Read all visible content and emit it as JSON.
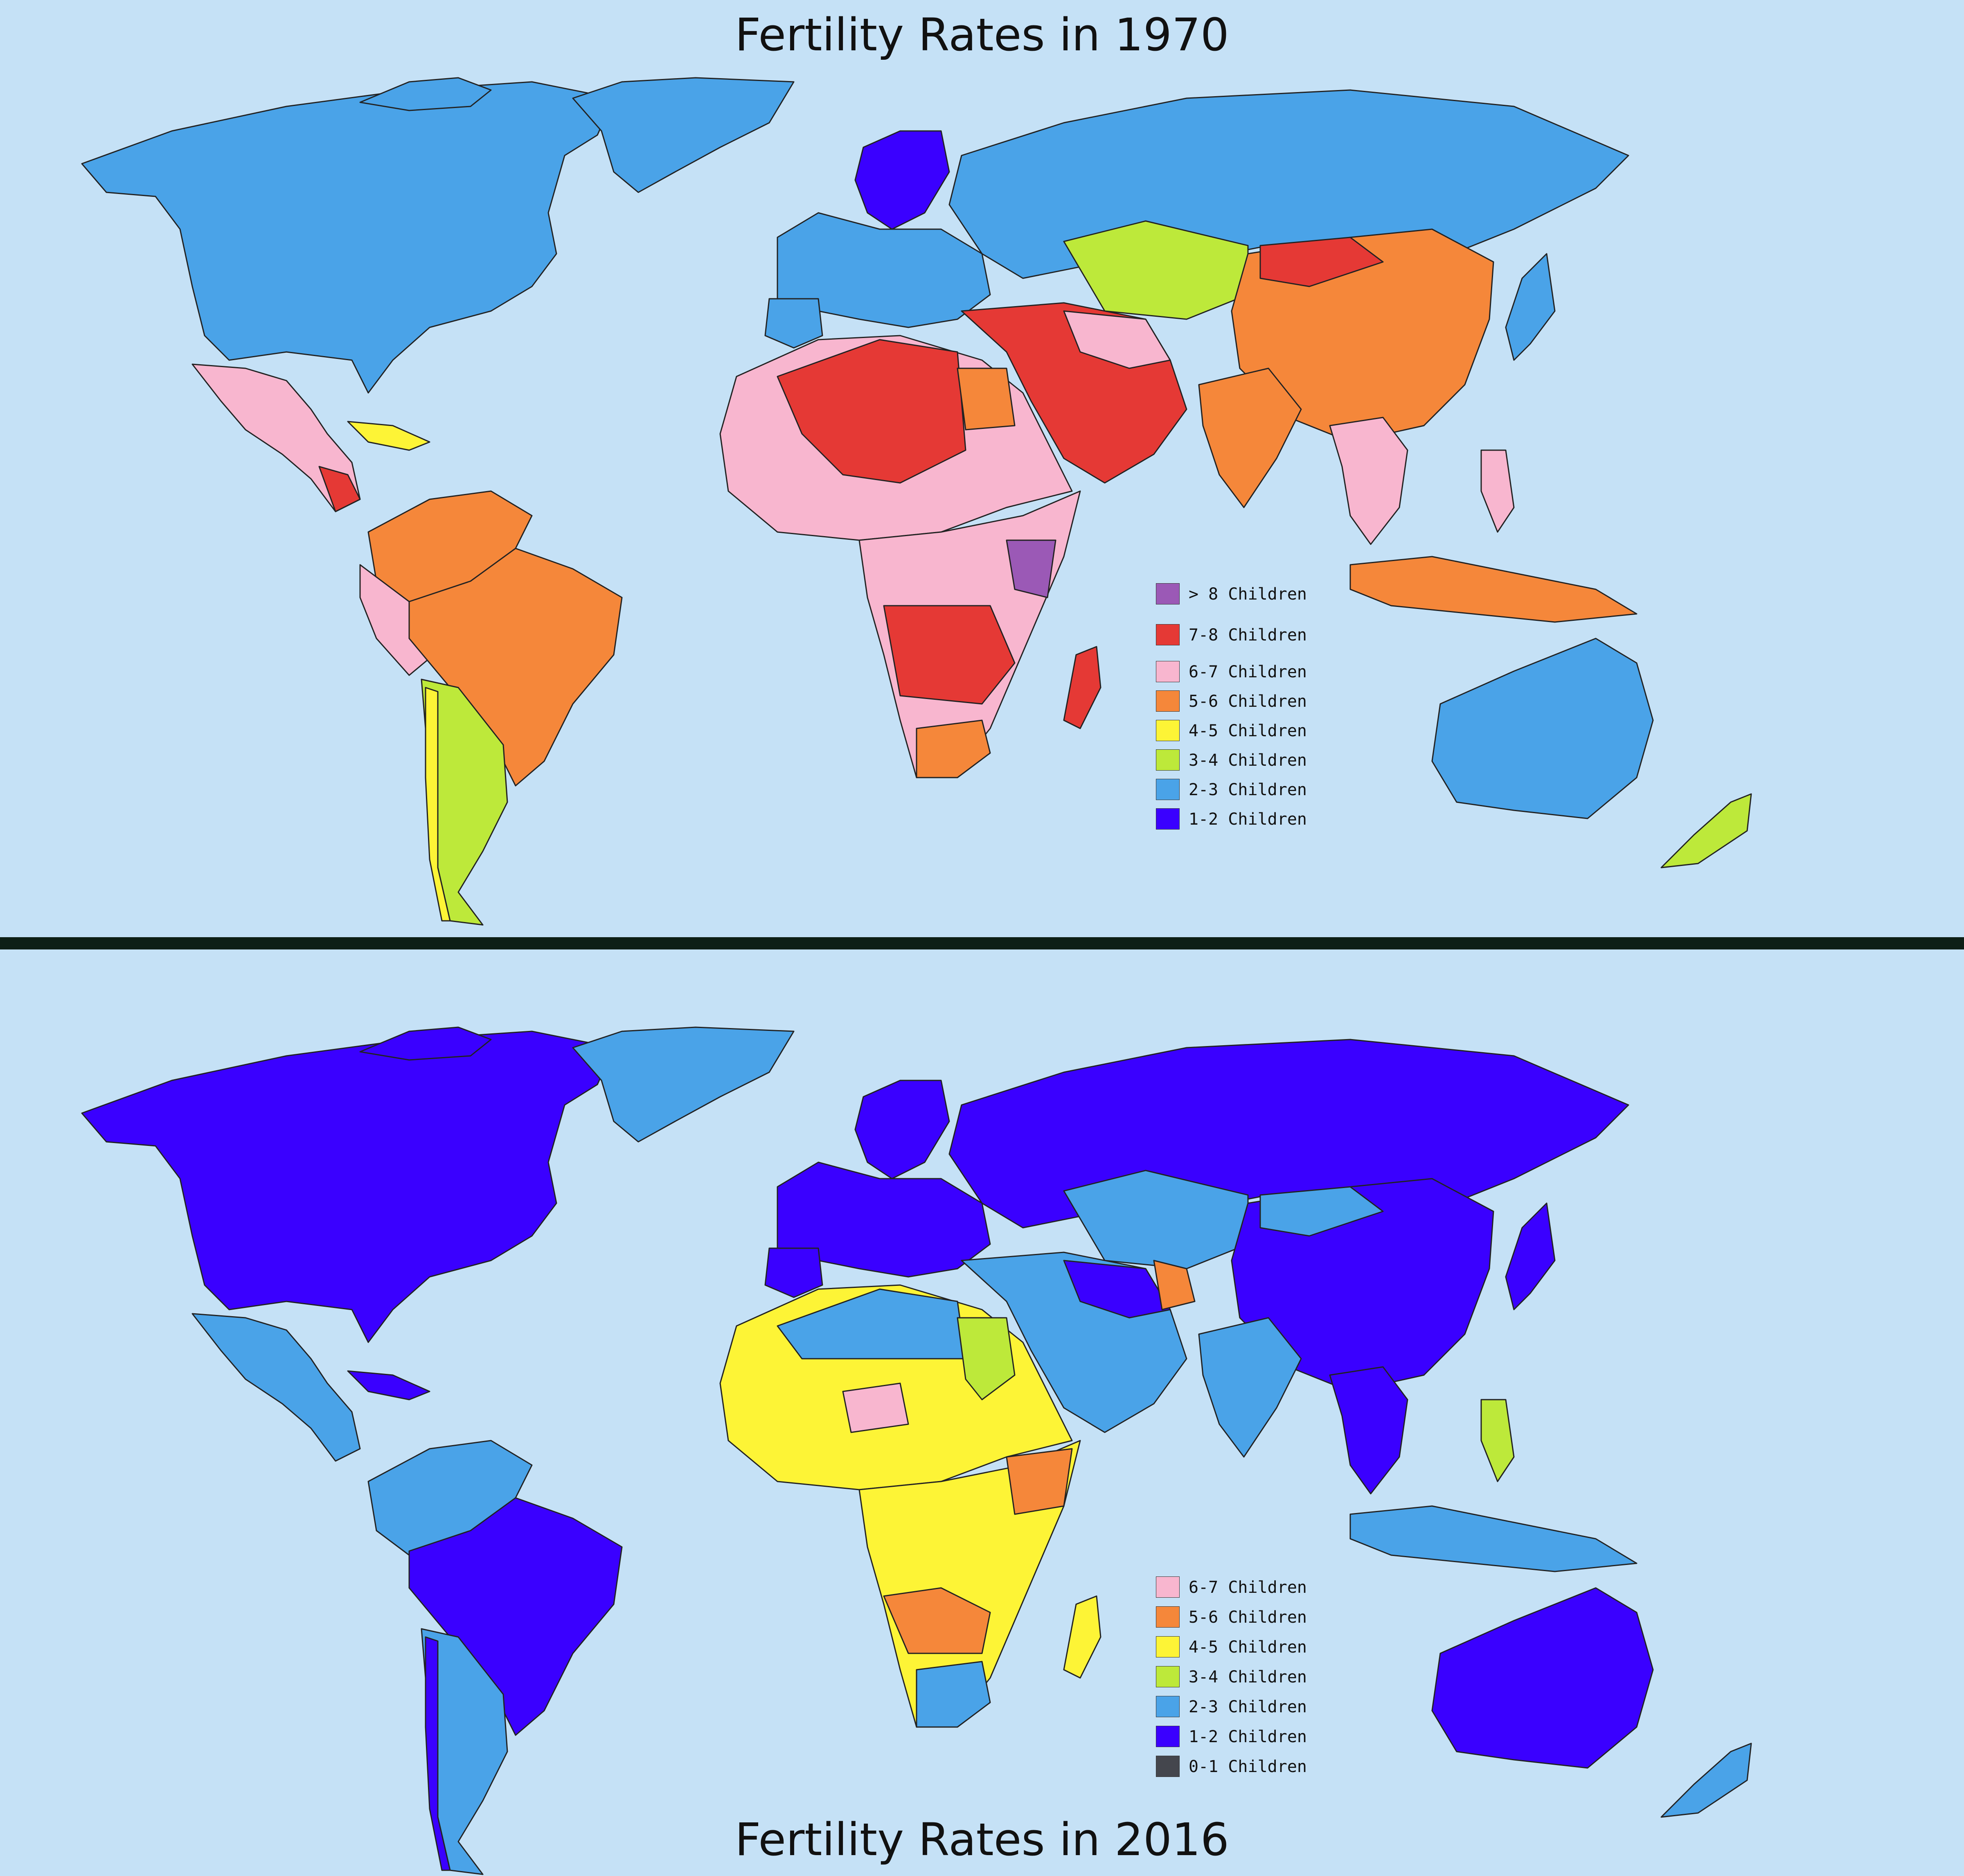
{
  "maps": [
    {
      "title": "Fertility Rates in 1970",
      "legend": [
        {
          "label": "> 8 Children",
          "color": "#9b59b6"
        },
        {
          "label": "7-8 Children",
          "color": "#e53935"
        },
        {
          "label": "6-7 Children",
          "color": "#f8b6cf"
        },
        {
          "label": "5-6 Children",
          "color": "#f5873a"
        },
        {
          "label": "4-5 Children",
          "color": "#fdf436"
        },
        {
          "label": "3-4 Children",
          "color": "#bde93a"
        },
        {
          "label": "2-3 Children",
          "color": "#4aa3e8"
        },
        {
          "label": "1-2 Children",
          "color": "#3a00ff"
        }
      ]
    },
    {
      "title": "Fertility Rates in 2016",
      "legend": [
        {
          "label": "6-7 Children",
          "color": "#f8b6cf"
        },
        {
          "label": "5-6 Children",
          "color": "#f5873a"
        },
        {
          "label": "4-5 Children",
          "color": "#fdf436"
        },
        {
          "label": "3-4 Children",
          "color": "#bde93a"
        },
        {
          "label": "2-3 Children",
          "color": "#4aa3e8"
        },
        {
          "label": "1-2 Children",
          "color": "#3a00ff"
        },
        {
          "label": "0-1 Children",
          "color": "#44464d"
        }
      ]
    }
  ],
  "colors": {
    "ocean": "#c5e1f6",
    "divider": "#0d1f16"
  }
}
